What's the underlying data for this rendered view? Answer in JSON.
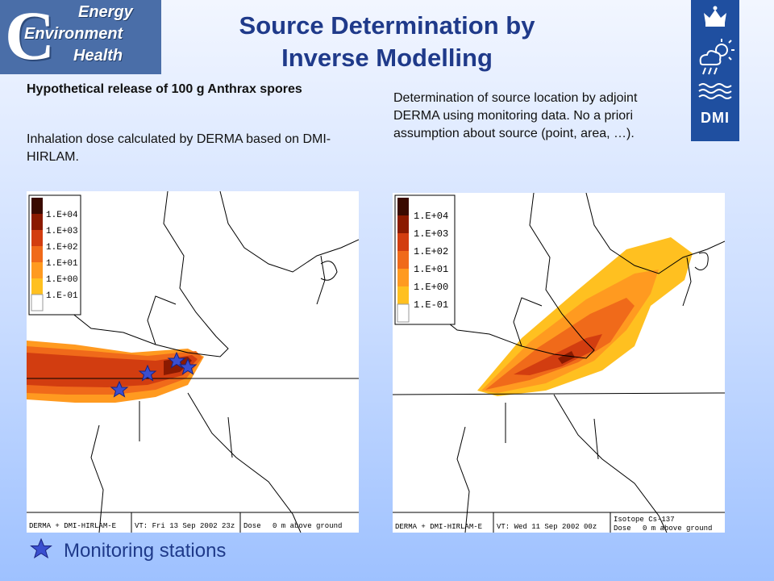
{
  "logo": {
    "letter": "C",
    "line1": "Energy",
    "line2": "Environment",
    "line3": "Health"
  },
  "title": {
    "line1": "Source Determination by",
    "line2": "Inverse Modelling"
  },
  "dmi_logo": {
    "text": "DMI",
    "icons": [
      "crown-icon",
      "sun-cloud-rain-icon",
      "waves-icon"
    ]
  },
  "left": {
    "heading": "Hypothetical release of 100 g Anthrax spores",
    "body": "Inhalation dose calculated by DERMA based on DMI-HIRLAM."
  },
  "right": {
    "body": "Determination of source location by adjoint DERMA using monitoring data. No a priori assumption about source (point, area, …)."
  },
  "legend_levels": [
    "1.E+04",
    "1.E+03",
    "1.E+02",
    "1.E+01",
    "1.E+00",
    "1.E-01"
  ],
  "legend_colors": [
    "#3a0a00",
    "#8b1a00",
    "#d23d10",
    "#f06a1a",
    "#ff9a20",
    "#ffc020",
    "#ffffff"
  ],
  "map1": {
    "footer_model": "DERMA + DMI-HIRLAM-E",
    "footer_time": "VT: Fri 13 Sep 2002 23z",
    "footer_qty": "Dose",
    "footer_height": "0 m above ground"
  },
  "map2": {
    "footer_model": "DERMA + DMI-HIRLAM-E",
    "footer_time": "VT: Wed 11 Sep 2002 00z",
    "footer_isotope": "Isotope Cs-137",
    "footer_qty": "Dose",
    "footer_height": "0 m above ground"
  },
  "footer": {
    "label": "Monitoring stations"
  }
}
